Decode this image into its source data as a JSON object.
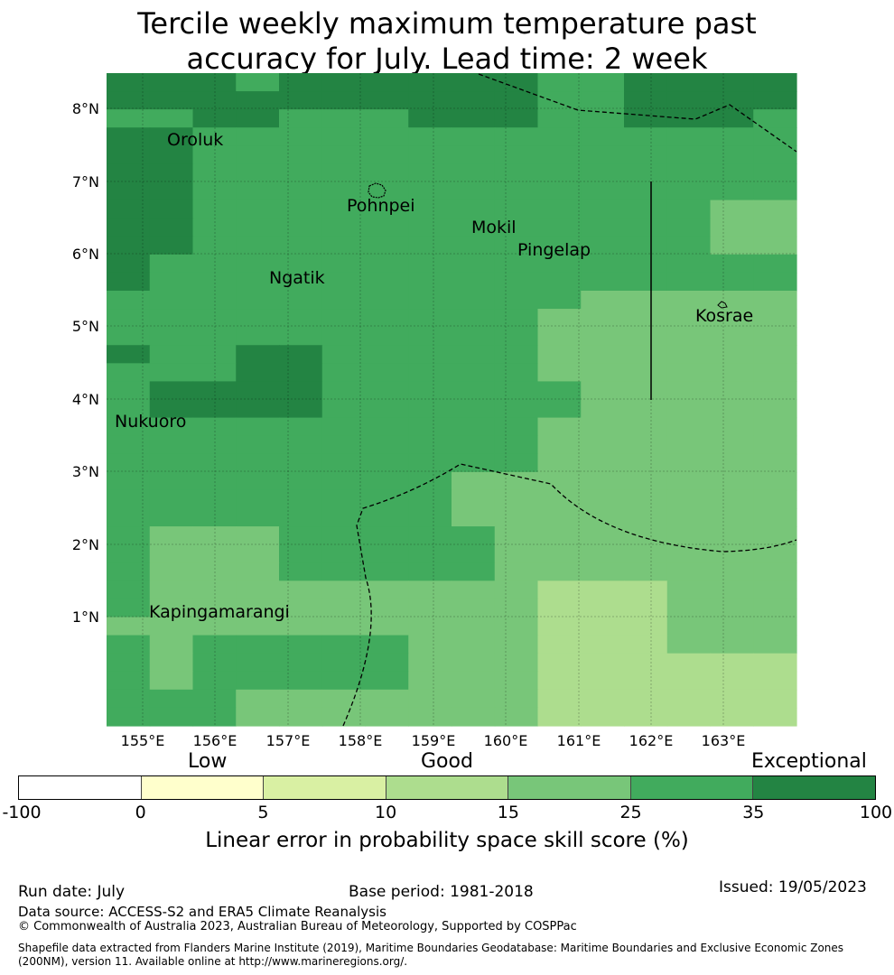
{
  "title_line1": "Tercile weekly maximum temperature past",
  "title_line2": "accuracy for July. Lead time: 2 week",
  "map": {
    "lon_ticks": [
      "155°E",
      "156°E",
      "157°E",
      "158°E",
      "159°E",
      "160°E",
      "161°E",
      "162°E",
      "163°E"
    ],
    "lat_ticks": [
      "8°N",
      "7°N",
      "6°N",
      "5°N",
      "4°N",
      "3°N",
      "2°N",
      "1°N"
    ],
    "places": [
      {
        "name": "Oroluk"
      },
      {
        "name": "Pohnpei"
      },
      {
        "name": "Mokil"
      },
      {
        "name": "Pingelap"
      },
      {
        "name": "Ngatik"
      },
      {
        "name": "Kosrae"
      },
      {
        "name": "Nukuoro"
      },
      {
        "name": "Kapingamarangi"
      }
    ],
    "cell_rows_top_to_bottom": [
      "6665666666556666",
      "6666666666556666",
      "5566555666556665",
      "6655555555555555",
      "6655555555555555",
      "6655555555555555",
      "6655555555555555",
      "6655555555555544",
      "6655555555555544",
      "6655555555555544",
      "6555555555555555",
      "6555555555555555",
      "5555555555544444",
      "5555555555444444",
      "5555555555444444",
      "6556655555444444",
      "5556655555444444",
      "5666655555544444",
      "5666655555544444",
      "5555555555444444",
      "5555555555444444",
      "5555555555444444",
      "5555555544444444",
      "5555555544444444",
      "5555555544444444",
      "5444555554444444",
      "5444555554444444",
      "5444555554444444",
      "5444444444333444",
      "5444444444333444",
      "4444444444333444",
      "5455555444333444",
      "5455555444333333",
      "5455555444333333",
      "5554444444333333",
      "5554444444333333"
    ]
  },
  "colorbar": {
    "colors": [
      "#ffffff",
      "#ffffcc",
      "#d9f0a3",
      "#addd8e",
      "#78c679",
      "#41ab5d",
      "#238443"
    ],
    "ticks": [
      "-100",
      "0",
      "5",
      "10",
      "15",
      "25",
      "35",
      "100"
    ],
    "categories": [
      "Low",
      "Good",
      "Exceptional"
    ],
    "label": "Linear error in probability space skill score (%)"
  },
  "footer": {
    "run_date": "Run date: July",
    "base_period": "Base period: 1981-2018",
    "issued": "Issued: 19/05/2023",
    "data_source": "Data source: ACCESS-S2 and ERA5 Climate Reanalysis",
    "copyright": "© Commonwealth of Australia 2023, Australian Bureau of Meteorology, Supported by COSPPac",
    "shapefile_line1": "Shapefile data extracted from Flanders Marine Institute (2019), Maritime Boundaries Geodatabase: Maritime Boundaries and Exclusive Economic Zones",
    "shapefile_line2": "(200NM), version 11. Available online at http://www.marineregions.org/."
  }
}
